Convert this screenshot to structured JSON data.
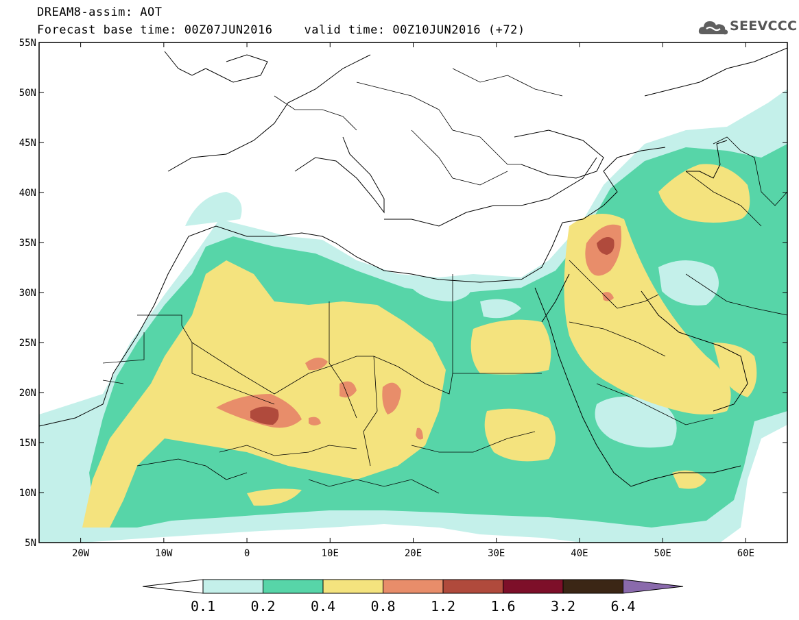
{
  "title": {
    "line1": "DREAM8-assim: AOT",
    "base": "Forecast base time: 00Z07JUN2016",
    "valid": "valid time: 00Z10JUN2016 (+72)"
  },
  "logo": {
    "text": "SEEVCCC",
    "icon": "cloud-icon"
  },
  "map": {
    "lon_range": [
      -25,
      65
    ],
    "lat_range": [
      5,
      55
    ],
    "lat_ticks": [
      "5N",
      "10N",
      "15N",
      "20N",
      "25N",
      "30N",
      "35N",
      "40N",
      "45N",
      "50N",
      "55N"
    ],
    "lon_ticks": [
      "20W",
      "10W",
      "0",
      "10E",
      "20E",
      "30E",
      "40E",
      "50E",
      "60E"
    ]
  },
  "legend": {
    "levels": [
      "0.1",
      "0.2",
      "0.4",
      "0.8",
      "1.2",
      "1.6",
      "3.2",
      "6.4"
    ],
    "colors": [
      "#ffffff",
      "#c4f0ea",
      "#57d5a8",
      "#f4e37e",
      "#e88d6a",
      "#b04a3c",
      "#7d0f29",
      "#3b2615",
      "#8a6aac"
    ]
  }
}
